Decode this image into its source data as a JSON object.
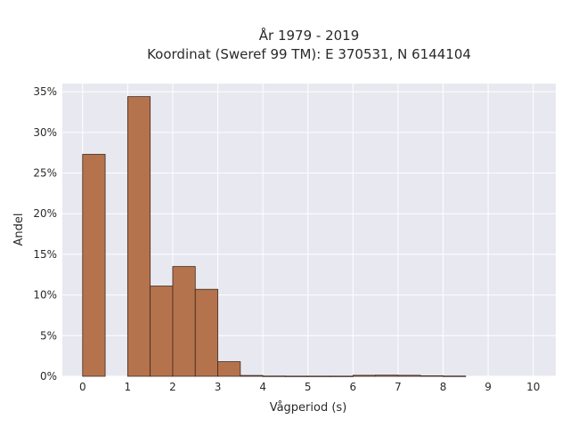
{
  "chart_data": {
    "type": "bar",
    "title": "År 1979 - 2019",
    "subtitle": "Koordinat (Sweref 99 TM): E 370531, N 6144104",
    "xlabel": "Vågperiod (s)",
    "ylabel": "Andel",
    "xlim": [
      -0.45,
      10.5
    ],
    "ylim": [
      0,
      0.36
    ],
    "xticks": [
      0,
      1,
      2,
      3,
      4,
      5,
      6,
      7,
      8,
      9,
      10
    ],
    "yticks": [
      0,
      0.05,
      0.1,
      0.15,
      0.2,
      0.25,
      0.3,
      0.35
    ],
    "ytick_labels": [
      "0%",
      "5%",
      "10%",
      "15%",
      "20%",
      "25%",
      "30%",
      "35%"
    ],
    "bin_width": 0.5,
    "bins": [
      {
        "start": 0.0,
        "value": 0.273
      },
      {
        "start": 0.5,
        "value": 0.0
      },
      {
        "start": 1.0,
        "value": 0.344
      },
      {
        "start": 1.5,
        "value": 0.111
      },
      {
        "start": 2.0,
        "value": 0.135
      },
      {
        "start": 2.5,
        "value": 0.107
      },
      {
        "start": 3.0,
        "value": 0.018
      },
      {
        "start": 3.5,
        "value": 0.001
      },
      {
        "start": 4.0,
        "value": 0.0003
      },
      {
        "start": 4.5,
        "value": 0.0002
      },
      {
        "start": 5.0,
        "value": 0.0002
      },
      {
        "start": 5.5,
        "value": 0.0002
      },
      {
        "start": 6.0,
        "value": 0.0012
      },
      {
        "start": 6.5,
        "value": 0.0014
      },
      {
        "start": 7.0,
        "value": 0.0012
      },
      {
        "start": 7.5,
        "value": 0.0006
      },
      {
        "start": 8.0,
        "value": 0.0003
      }
    ],
    "colors": {
      "bar": "#b5734d",
      "plot_background": "#e8e8f0",
      "grid": "#ffffff"
    },
    "grid": true
  }
}
